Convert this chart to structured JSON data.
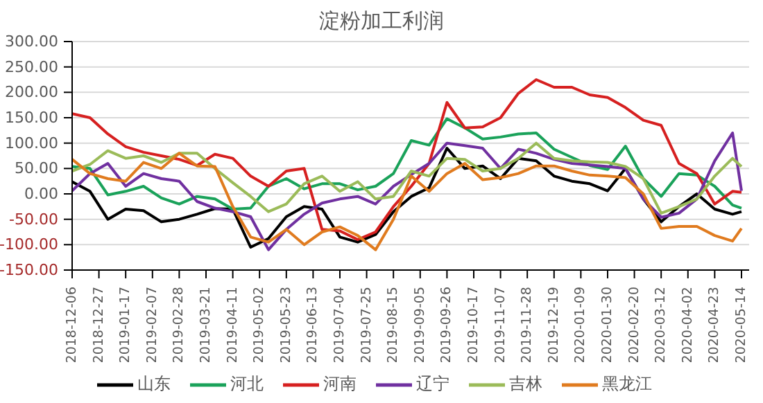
{
  "chart_data": {
    "type": "line",
    "title": "淀粉加工利润",
    "x": [
      "2018-12-06",
      "2018-12-20",
      "2019-01-03",
      "2019-01-17",
      "2019-01-31",
      "2019-02-14",
      "2019-02-28",
      "2019-03-14",
      "2019-03-28",
      "2019-04-11",
      "2019-04-25",
      "2019-05-09",
      "2019-05-23",
      "2019-06-06",
      "2019-06-20",
      "2019-07-04",
      "2019-07-18",
      "2019-08-01",
      "2019-08-15",
      "2019-08-29",
      "2019-09-12",
      "2019-09-26",
      "2019-10-10",
      "2019-10-24",
      "2019-11-07",
      "2019-11-21",
      "2019-12-05",
      "2019-12-19",
      "2020-01-02",
      "2020-01-16",
      "2020-01-30",
      "2020-02-13",
      "2020-02-27",
      "2020-03-12",
      "2020-03-26",
      "2020-04-09",
      "2020-04-23",
      "2020-05-07",
      "2020-05-14"
    ],
    "series": [
      {
        "name": "山东",
        "color": "#000000",
        "values": [
          24,
          5,
          -50,
          -30,
          -33,
          -55,
          -50,
          -40,
          -29,
          -30,
          -105,
          -88,
          -45,
          -25,
          -30,
          -85,
          -95,
          -80,
          -35,
          -5,
          12,
          90,
          50,
          55,
          30,
          70,
          65,
          35,
          25,
          20,
          6,
          50,
          -10,
          -55,
          -25,
          0,
          -30,
          -40,
          -35
        ]
      },
      {
        "name": "河北",
        "color": "#1aa25a",
        "values": [
          54,
          50,
          -2,
          5,
          15,
          -8,
          -20,
          -5,
          -10,
          -30,
          -28,
          15,
          30,
          10,
          20,
          20,
          8,
          15,
          40,
          105,
          96,
          148,
          130,
          108,
          112,
          118,
          120,
          88,
          72,
          56,
          48,
          94,
          30,
          -5,
          40,
          37,
          15,
          -22,
          -28
        ]
      },
      {
        "name": "河南",
        "color": "#d62020",
        "values": [
          158,
          150,
          118,
          93,
          82,
          75,
          68,
          56,
          78,
          70,
          35,
          15,
          45,
          50,
          -70,
          -73,
          -90,
          -75,
          -25,
          15,
          60,
          180,
          130,
          132,
          150,
          198,
          225,
          210,
          210,
          195,
          190,
          170,
          145,
          135,
          60,
          40,
          -20,
          5,
          3
        ]
      },
      {
        "name": "辽宁",
        "color": "#7030a0",
        "values": [
          6,
          40,
          60,
          15,
          40,
          30,
          25,
          -15,
          -28,
          -35,
          -45,
          -110,
          -70,
          -40,
          -18,
          -10,
          -5,
          -20,
          15,
          38,
          60,
          100,
          95,
          90,
          50,
          88,
          80,
          68,
          60,
          57,
          54,
          50,
          -10,
          -46,
          -38,
          -10,
          65,
          120,
          6
        ]
      },
      {
        "name": "吉林",
        "color": "#9bbb59",
        "values": [
          45,
          58,
          85,
          70,
          75,
          62,
          80,
          80,
          50,
          22,
          -5,
          -35,
          -20,
          20,
          35,
          5,
          24,
          -10,
          -5,
          45,
          35,
          70,
          68,
          45,
          50,
          70,
          100,
          70,
          65,
          63,
          62,
          54,
          30,
          -38,
          -25,
          -10,
          35,
          70,
          54
        ]
      },
      {
        "name": "黑龙江",
        "color": "#e07b1f",
        "values": [
          68,
          40,
          30,
          25,
          62,
          50,
          80,
          55,
          54,
          -25,
          -85,
          -95,
          -70,
          -100,
          -75,
          -65,
          -82,
          -110,
          -50,
          35,
          5,
          40,
          60,
          28,
          32,
          40,
          55,
          55,
          45,
          37,
          35,
          32,
          0,
          -68,
          -64,
          -64,
          -82,
          -93,
          -68
        ]
      }
    ],
    "ylim": [
      -150,
      300
    ],
    "yticks": [
      {
        "value": -150,
        "label": "-150.00"
      },
      {
        "value": -100,
        "label": "-100.00"
      },
      {
        "value": -50,
        "label": "-50.00"
      },
      {
        "value": 0,
        "label": "0.00"
      },
      {
        "value": 50,
        "label": "50.00"
      },
      {
        "value": 100,
        "label": "100.00"
      },
      {
        "value": 150,
        "label": "150.00"
      },
      {
        "value": 200,
        "label": "200.00"
      },
      {
        "value": 250,
        "label": "250.00"
      },
      {
        "value": 300,
        "label": "300.00"
      }
    ],
    "xlim": [
      "2018-12-06",
      "2020-05-20"
    ],
    "xticks": [
      "2018-12-06",
      "2018-12-27",
      "2019-01-17",
      "2019-02-07",
      "2019-02-28",
      "2019-03-21",
      "2019-04-11",
      "2019-05-02",
      "2019-05-23",
      "2019-06-13",
      "2019-07-04",
      "2019-07-25",
      "2019-08-15",
      "2019-09-05",
      "2019-09-26",
      "2019-10-17",
      "2019-11-07",
      "2019-11-28",
      "2019-12-19",
      "2020-01-09",
      "2020-01-30",
      "2020-02-20",
      "2020-03-12",
      "2020-04-02",
      "2020-04-23",
      "2020-05-14"
    ],
    "grid": "y",
    "legend": "bottom",
    "marker": "none",
    "line_style": "solid"
  }
}
